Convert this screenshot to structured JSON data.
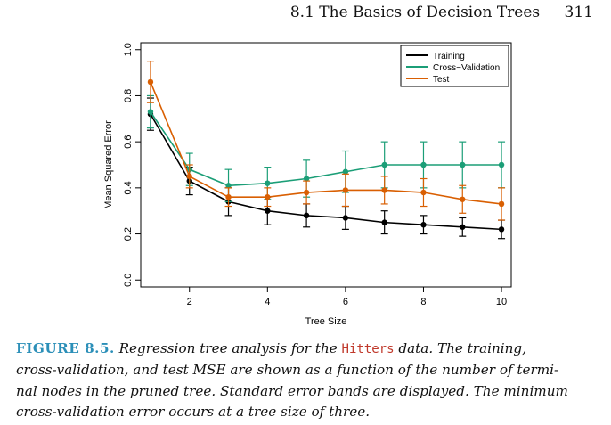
{
  "header": {
    "section": "8.1 The Basics of Decision Trees",
    "page_number": "311"
  },
  "chart_data": {
    "type": "line",
    "title": "",
    "xlabel": "Tree Size",
    "ylabel": "Mean Squared Error",
    "xlim": [
      0.75,
      10.25
    ],
    "ylim": [
      -0.03,
      1.03
    ],
    "xticks": [
      2,
      4,
      6,
      8,
      10
    ],
    "yticks": [
      0.0,
      0.2,
      0.4,
      0.6,
      0.8,
      1.0
    ],
    "xtick_labels": [
      "2",
      "4",
      "6",
      "8",
      "10"
    ],
    "ytick_labels": [
      "0.0",
      "0.2",
      "0.4",
      "0.6",
      "0.8",
      "1.0"
    ],
    "grid": false,
    "legend_position": "top-right",
    "x": [
      1,
      2,
      3,
      4,
      5,
      6,
      7,
      8,
      9,
      10
    ],
    "series": [
      {
        "name": "Training",
        "color": "#000000",
        "values": [
          0.72,
          0.43,
          0.34,
          0.3,
          0.28,
          0.27,
          0.25,
          0.24,
          0.23,
          0.22
        ],
        "se": [
          0.07,
          0.06,
          0.06,
          0.06,
          0.05,
          0.05,
          0.05,
          0.04,
          0.04,
          0.04
        ]
      },
      {
        "name": "Cross−Validation",
        "color": "#1b9e77",
        "values": [
          0.73,
          0.48,
          0.41,
          0.42,
          0.44,
          0.47,
          0.5,
          0.5,
          0.5,
          0.5
        ],
        "se": [
          0.07,
          0.07,
          0.07,
          0.07,
          0.08,
          0.09,
          0.1,
          0.1,
          0.1,
          0.1
        ]
      },
      {
        "name": "Test",
        "color": "#d95f02",
        "values": [
          0.86,
          0.45,
          0.36,
          0.36,
          0.38,
          0.39,
          0.39,
          0.38,
          0.35,
          0.33
        ],
        "se": [
          0.09,
          0.05,
          0.04,
          0.04,
          0.05,
          0.07,
          0.06,
          0.06,
          0.06,
          0.07
        ]
      }
    ]
  },
  "caption": {
    "label": "FIGURE 8.5.",
    "line1_a": "Regression tree analysis for the",
    "code": "Hitters",
    "line1_b": "data. The training,",
    "line2": "cross-validation, and test MSE are shown as a function of the number of termi-",
    "line3": "nal nodes in the pruned tree. Standard error bands are displayed. The minimum",
    "line4": "cross-validation error occurs at a tree size of three."
  }
}
